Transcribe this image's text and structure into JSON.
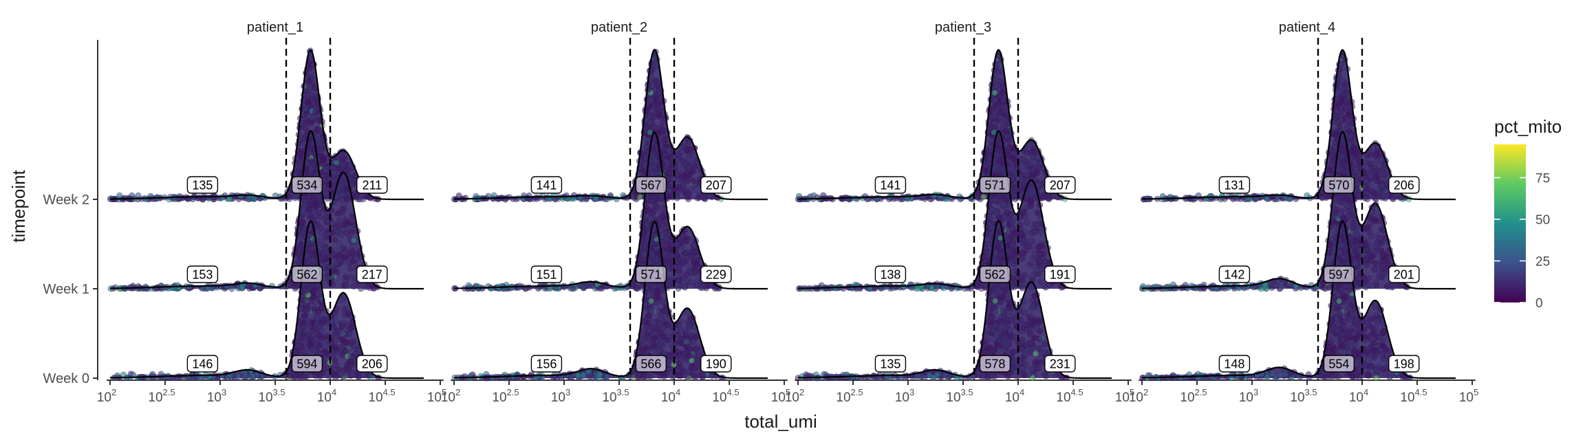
{
  "chart_data": {
    "type": "ridgeline-jitter",
    "xlabel": "total_umi",
    "ylabel": "timepoint",
    "x_scale": "log10",
    "xlim": [
      2,
      5
    ],
    "x_ticks": [
      {
        "base": "10",
        "exp": "2"
      },
      {
        "base": "10",
        "exp": "2.5"
      },
      {
        "base": "10",
        "exp": "3"
      },
      {
        "base": "10",
        "exp": "3.5"
      },
      {
        "base": "10",
        "exp": "4"
      },
      {
        "base": "10",
        "exp": "4.5"
      },
      {
        "base": "10",
        "exp": "5"
      }
    ],
    "x_tick_values": [
      2,
      2.5,
      3,
      3.5,
      4,
      4.5,
      5
    ],
    "categories": [
      "Week 0",
      "Week 1",
      "Week 2"
    ],
    "thresholds_log10": [
      3.6,
      4.0
    ],
    "color_legend": {
      "title": "pct_mito",
      "ticks": [
        "0",
        "25",
        "50",
        "75"
      ],
      "range": [
        0,
        95
      ],
      "palette": [
        "#440154",
        "#3b528b",
        "#21918c",
        "#5ec962",
        "#fde725"
      ]
    },
    "panels": [
      {
        "name": "patient_1",
        "counts": {
          "Week 0": [
            "146",
            "594",
            "206"
          ],
          "Week 1": [
            "153",
            "562",
            "217"
          ],
          "Week 2": [
            "135",
            "534",
            "211"
          ]
        }
      },
      {
        "name": "patient_2",
        "counts": {
          "Week 0": [
            "156",
            "566",
            "190"
          ],
          "Week 1": [
            "151",
            "571",
            "229"
          ],
          "Week 2": [
            "141",
            "567",
            "207"
          ]
        }
      },
      {
        "name": "patient_3",
        "counts": {
          "Week 0": [
            "135",
            "578",
            "231"
          ],
          "Week 1": [
            "138",
            "562",
            "191"
          ],
          "Week 2": [
            "141",
            "571",
            "207"
          ]
        }
      },
      {
        "name": "patient_4",
        "counts": {
          "Week 0": [
            "148",
            "554",
            "198"
          ],
          "Week 1": [
            "142",
            "597",
            "201"
          ],
          "Week 2": [
            "131",
            "570",
            "206"
          ]
        }
      }
    ]
  }
}
